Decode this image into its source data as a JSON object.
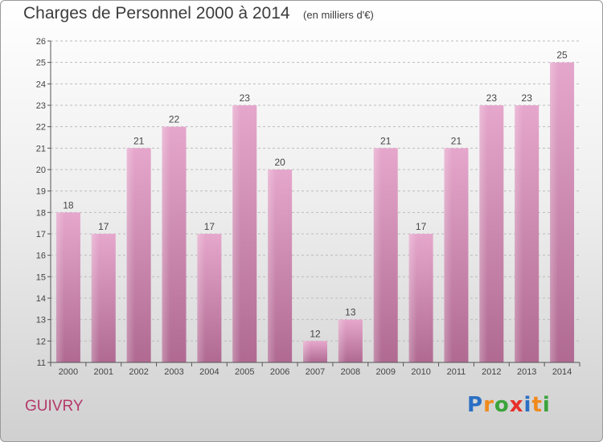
{
  "title": "Charges de Personnel 2000 à 2014",
  "subtitle": "(en milliers d'€)",
  "commune": "GUIVRY",
  "logo": {
    "text": "Proxiti",
    "letters": [
      {
        "ch": "P",
        "color": "#2b6fc4"
      },
      {
        "ch": "r",
        "color": "#f08a1c"
      },
      {
        "ch": "o",
        "color": "#3aa43a"
      },
      {
        "ch": "x",
        "color": "#e8302a"
      },
      {
        "ch": "i",
        "color": "#2b6fc4"
      },
      {
        "ch": "t",
        "color": "#f08a1c"
      },
      {
        "ch": "i",
        "color": "#3aa43a"
      }
    ]
  },
  "colors": {
    "bar_top": "#e6a7cc",
    "bar_bottom": "#b06a92",
    "axis": "#555555",
    "grid": "#bdbdbd"
  },
  "chart_data": {
    "type": "bar",
    "categories": [
      "2000",
      "2001",
      "2002",
      "2003",
      "2004",
      "2005",
      "2006",
      "2007",
      "2008",
      "2009",
      "2010",
      "2011",
      "2012",
      "2013",
      "2014"
    ],
    "values": [
      18,
      17,
      21,
      22,
      17,
      23,
      20,
      12,
      13,
      21,
      17,
      21,
      23,
      23,
      25
    ],
    "ylim": [
      11,
      26
    ],
    "yticks": [
      11,
      12,
      13,
      14,
      15,
      16,
      17,
      18,
      19,
      20,
      21,
      22,
      23,
      24,
      25,
      26
    ],
    "grid": "horizontal dashed",
    "title": "Charges de Personnel 2000 à 2014",
    "xlabel": "",
    "ylabel": ""
  }
}
